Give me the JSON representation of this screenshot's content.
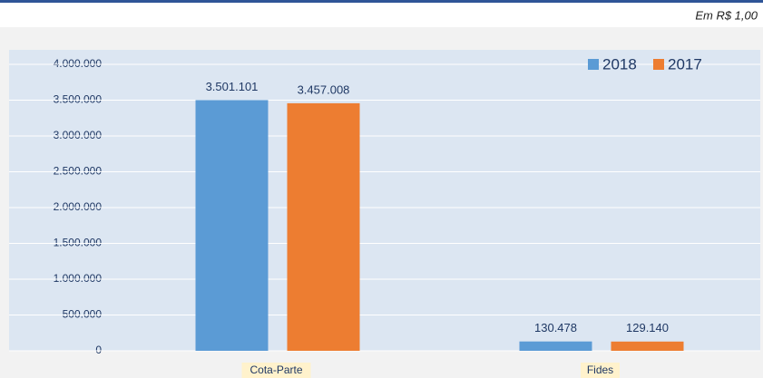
{
  "chart_data": {
    "type": "bar",
    "subtitle": "Em R$ 1,00",
    "categories": [
      "Cota-Parte",
      "Fides"
    ],
    "series": [
      {
        "name": "2018",
        "color": "#5b9bd5",
        "values": [
          3501101,
          130478
        ],
        "value_labels": [
          "3.501.101",
          "130.478"
        ]
      },
      {
        "name": "2017",
        "color": "#ed7d31",
        "values": [
          3457008,
          129140
        ],
        "value_labels": [
          "3.457.008",
          "129.140"
        ]
      }
    ],
    "ylim": [
      0,
      4000000
    ],
    "yticks": [
      {
        "value": 0,
        "label": "0"
      },
      {
        "value": 500000,
        "label": "500.000"
      },
      {
        "value": 1000000,
        "label": "1.000.000"
      },
      {
        "value": 1500000,
        "label": "1.500.000"
      },
      {
        "value": 2000000,
        "label": "2.000.000"
      },
      {
        "value": 2500000,
        "label": "2.500.000"
      },
      {
        "value": 3000000,
        "label": "3.000.000"
      },
      {
        "value": 3500000,
        "label": "3.500.000"
      },
      {
        "value": 4000000,
        "label": "4.000.000"
      }
    ],
    "grid": true,
    "legend": "top-right"
  }
}
